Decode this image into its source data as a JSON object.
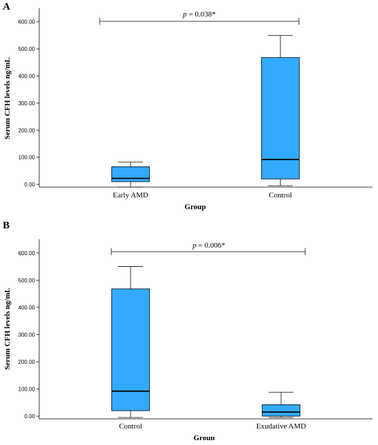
{
  "chart_data": [
    {
      "type": "box",
      "panel_label": "A",
      "ylabel": "Serum CFH levels ng/mL",
      "xlabel": "Group",
      "ylim": [
        -10,
        650
      ],
      "yticks": [
        0,
        100,
        200,
        300,
        400,
        500,
        600
      ],
      "ytick_labels": [
        "0.00",
        "100.00",
        "200.00",
        "300.00",
        "400.00",
        "500.00",
        "600.00"
      ],
      "categories": [
        "Early AMD",
        "Control"
      ],
      "boxes": [
        {
          "min": -10,
          "q1": 10,
          "median": 22,
          "q3": 65,
          "max": 82
        },
        {
          "min": -5,
          "q1": 20,
          "median": 92,
          "q3": 468,
          "max": 550
        }
      ],
      "box_color": "#33aaff",
      "annotation_prefix": "p",
      "annotation_text": " = 0.038*",
      "annotation_y": 620
    },
    {
      "type": "box",
      "panel_label": "B",
      "ylabel": "Serum CFH levels ng/mL",
      "xlabel": "Group",
      "ylim": [
        -10,
        650
      ],
      "yticks": [
        0,
        100,
        200,
        300,
        400,
        500,
        600
      ],
      "ytick_labels": [
        "0.00",
        "100.00",
        "200.00",
        "300.00",
        "400.00",
        "500.00",
        "600.00"
      ],
      "categories": [
        "Control",
        "Exudative AMD"
      ],
      "boxes": [
        {
          "min": -5,
          "q1": 20,
          "median": 92,
          "q3": 468,
          "max": 550
        },
        {
          "min": -5,
          "q1": 0,
          "median": 15,
          "q3": 42,
          "max": 88
        }
      ],
      "box_color": "#33aaff",
      "annotation_prefix": "p",
      "annotation_text": " = 0.006*",
      "annotation_y": 625
    }
  ]
}
